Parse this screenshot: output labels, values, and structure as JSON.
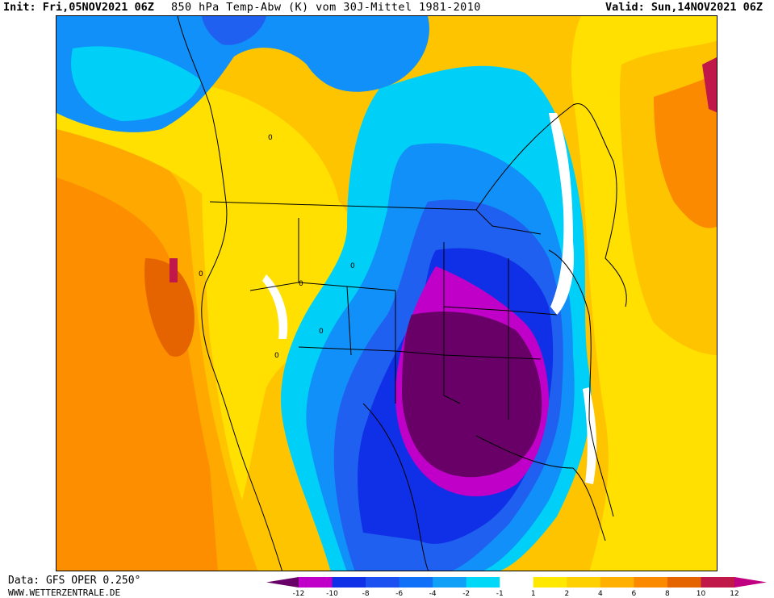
{
  "header": {
    "init": "Init: Fri,05NOV2021 06Z",
    "title": "850 hPa Temp-Abw (K) vom 30J-Mittel 1981-2010",
    "valid": "Valid: Sun,14NOV2021 06Z"
  },
  "footer": {
    "data_source": "Data: GFS OPER 0.250°",
    "website": "WWW.WETTERZENTRALE.DE"
  },
  "map": {
    "variable": "850 hPa temperature anomaly",
    "anomaly_colors": {
      "deep_cold": "#680068",
      "cold_magenta": "#c000c8",
      "blue_dark": "#1030e8",
      "blue_mid": "#2060f0",
      "blue_light": "#1090f8",
      "cyan": "#00d0f8",
      "near_zero": "#ffffff",
      "yellow": "#ffe000",
      "yellow_orange": "#ffc400",
      "orange_light": "#ffa800",
      "orange": "#fb8a00",
      "red_orange": "#e66400",
      "crimson": "#c01848"
    },
    "contour_labels": [
      "0",
      "0",
      "0",
      "0",
      "0",
      "0"
    ]
  },
  "legend": {
    "ticks": [
      "-12",
      "-10",
      "-8",
      "-6",
      "-4",
      "-2",
      "-1",
      "1",
      "2",
      "4",
      "6",
      "8",
      "10",
      "12"
    ],
    "colors": [
      "#680068",
      "#c000c8",
      "#1030e8",
      "#1c50f0",
      "#1070f8",
      "#10a0f8",
      "#00d8f8",
      "#ffffff",
      "#ffe800",
      "#ffd000",
      "#ffb000",
      "#fb8a00",
      "#e66400",
      "#c01848",
      "#c00080"
    ]
  }
}
